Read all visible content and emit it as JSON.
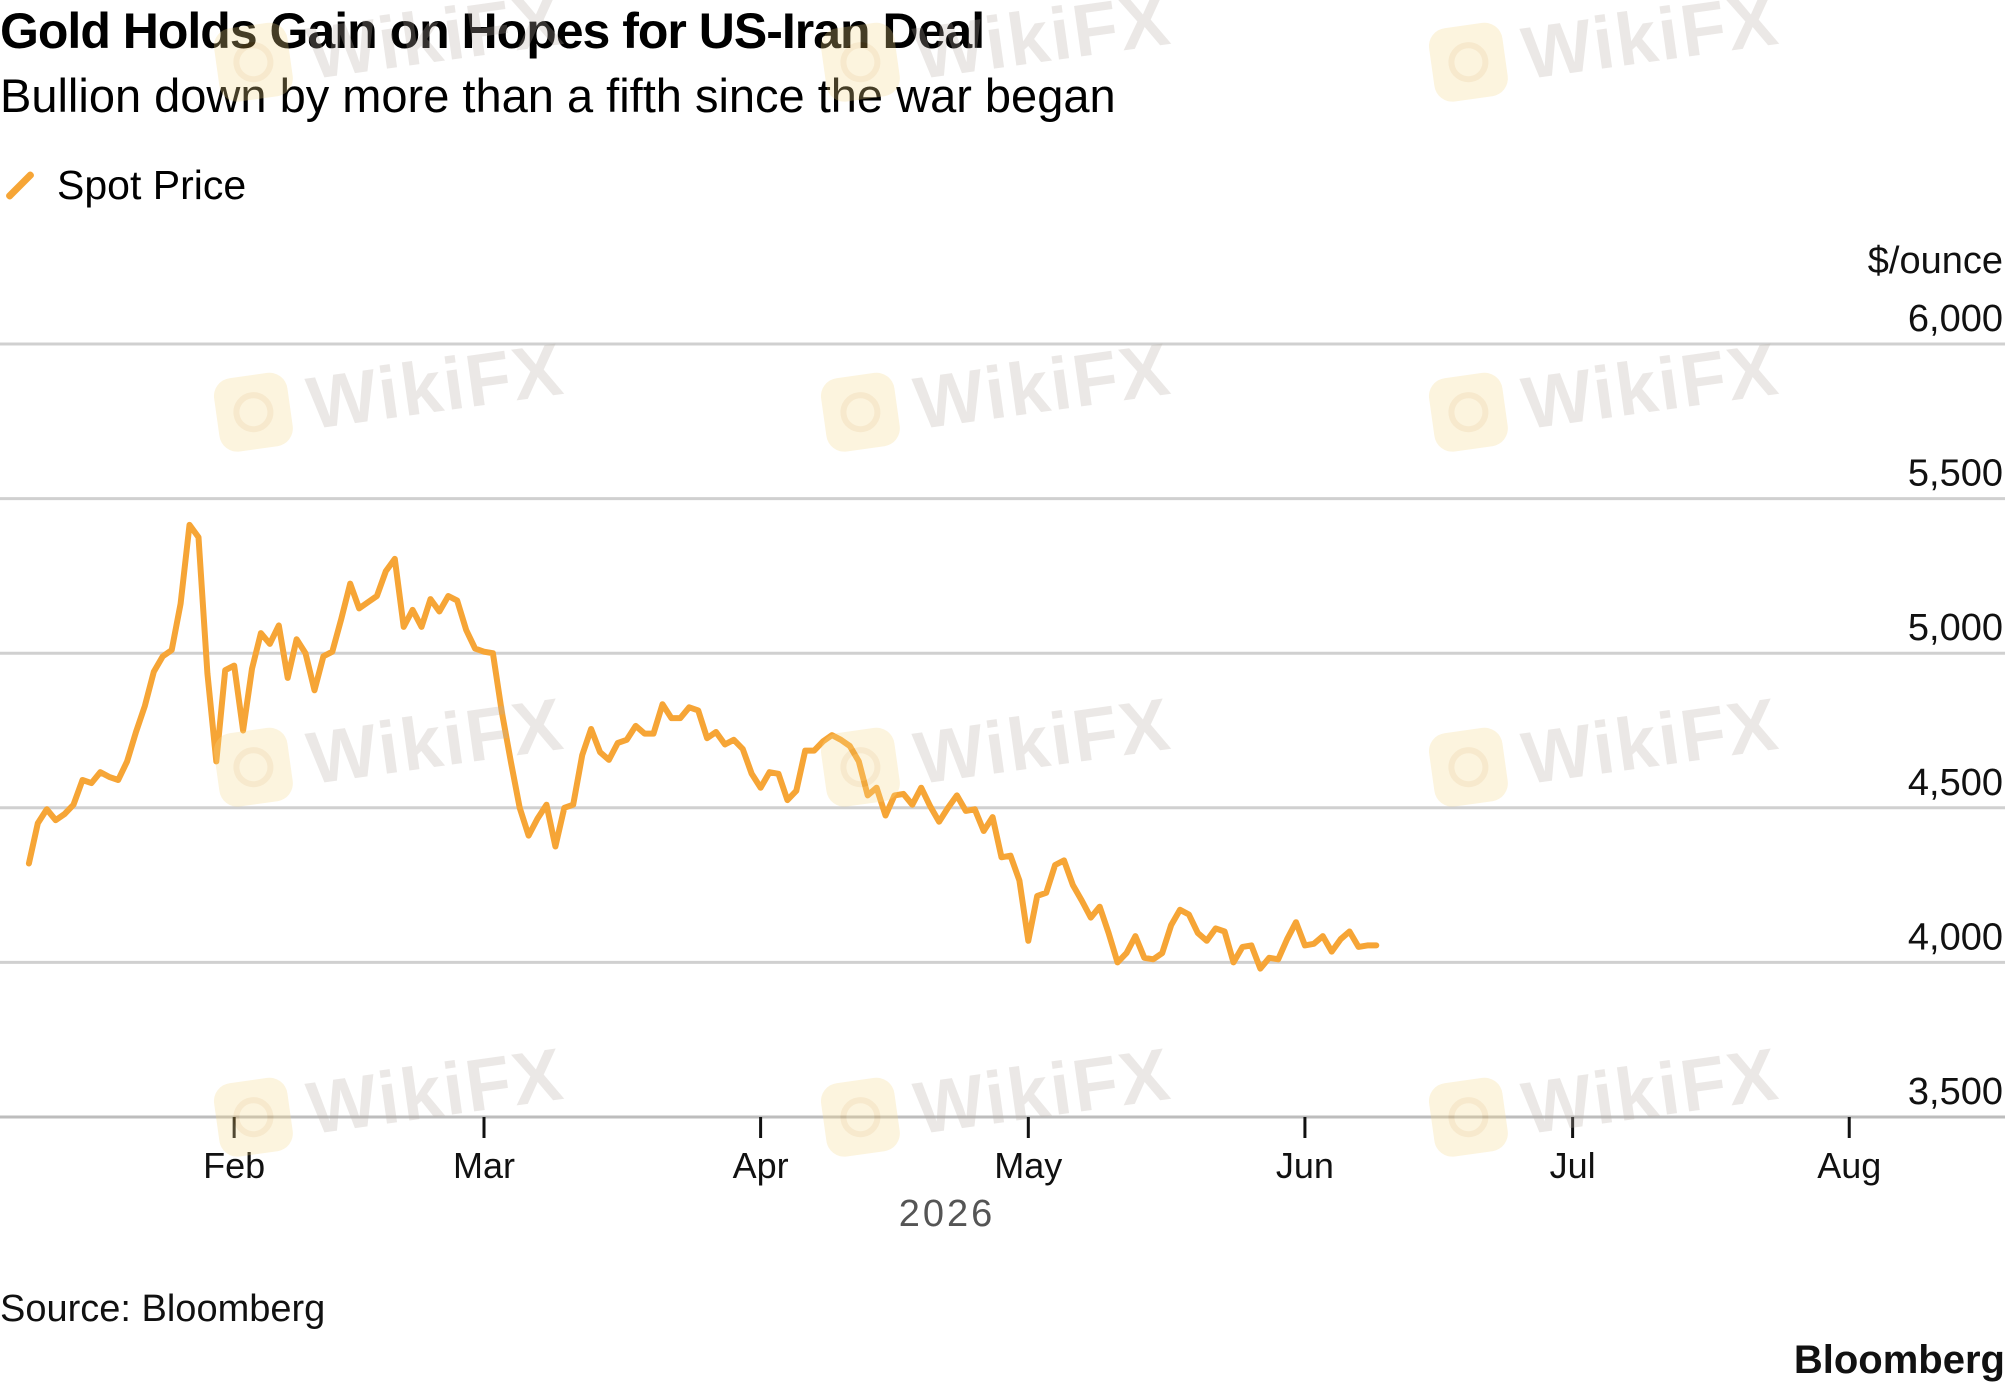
{
  "title": "Gold Holds Gain on Hopes for US-Iran Deal",
  "subtitle": "Bullion down by more than a fifth since the war began",
  "legend": {
    "series_label": "Spot Price",
    "color": "#f6a536"
  },
  "source": "Source: Bloomberg",
  "brand": "Bloomberg",
  "watermark": "WikiFX",
  "chart_data": {
    "type": "line",
    "y_unit_label": "$/ounce",
    "ylim": [
      3500,
      6000
    ],
    "yticks": [
      3500,
      4000,
      4500,
      5000,
      5500,
      6000
    ],
    "ytick_labels": [
      "3,500",
      "4,000",
      "4,500",
      "5,000",
      "5,500",
      "6,000"
    ],
    "xlim": [
      "2026-01-08",
      "2026-08-04"
    ],
    "xticks": [
      "2026-02-01",
      "2026-03-01",
      "2026-04-01",
      "2026-05-01",
      "2026-06-01",
      "2026-07-01",
      "2026-08-01"
    ],
    "xtick_labels": [
      "Feb",
      "Mar",
      "Apr",
      "May",
      "Jun",
      "Jul",
      "Aug"
    ],
    "x_year_label": "2026",
    "grid": true,
    "legend_position": "top-left",
    "series": [
      {
        "name": "Spot Price",
        "color": "#f6a536",
        "points": [
          [
            "2026-01-09",
            4320
          ],
          [
            "2026-01-10",
            4450
          ],
          [
            "2026-01-11",
            4495
          ],
          [
            "2026-01-12",
            4460
          ],
          [
            "2026-01-13",
            4480
          ],
          [
            "2026-01-14",
            4510
          ],
          [
            "2026-01-15",
            4590
          ],
          [
            "2026-01-16",
            4580
          ],
          [
            "2026-01-17",
            4615
          ],
          [
            "2026-01-18",
            4600
          ],
          [
            "2026-01-19",
            4590
          ],
          [
            "2026-01-20",
            4650
          ],
          [
            "2026-01-21",
            4745
          ],
          [
            "2026-01-22",
            4830
          ],
          [
            "2026-01-23",
            4940
          ],
          [
            "2026-01-24",
            4990
          ],
          [
            "2026-01-25",
            5010
          ],
          [
            "2026-01-26",
            5160
          ],
          [
            "2026-01-27",
            5415
          ],
          [
            "2026-01-28",
            5375
          ],
          [
            "2026-01-29",
            4935
          ],
          [
            "2026-01-30",
            4650
          ],
          [
            "2026-01-31",
            4945
          ],
          [
            "2026-02-01",
            4960
          ],
          [
            "2026-02-02",
            4750
          ],
          [
            "2026-02-03",
            4950
          ],
          [
            "2026-02-04",
            5065
          ],
          [
            "2026-02-05",
            5030
          ],
          [
            "2026-02-06",
            5090
          ],
          [
            "2026-02-07",
            4920
          ],
          [
            "2026-02-08",
            5045
          ],
          [
            "2026-02-09",
            5000
          ],
          [
            "2026-02-10",
            4880
          ],
          [
            "2026-02-11",
            4990
          ],
          [
            "2026-02-12",
            5005
          ],
          [
            "2026-02-13",
            5110
          ],
          [
            "2026-02-14",
            5225
          ],
          [
            "2026-02-15",
            5145
          ],
          [
            "2026-02-16",
            5165
          ],
          [
            "2026-02-17",
            5185
          ],
          [
            "2026-02-18",
            5265
          ],
          [
            "2026-02-19",
            5305
          ],
          [
            "2026-02-20",
            5085
          ],
          [
            "2026-02-21",
            5140
          ],
          [
            "2026-02-22",
            5085
          ],
          [
            "2026-02-23",
            5175
          ],
          [
            "2026-02-24",
            5135
          ],
          [
            "2026-02-25",
            5185
          ],
          [
            "2026-02-26",
            5170
          ],
          [
            "2026-02-27",
            5075
          ],
          [
            "2026-02-28",
            5015
          ],
          [
            "2026-03-01",
            5005
          ],
          [
            "2026-03-02",
            5000
          ],
          [
            "2026-03-03",
            4810
          ],
          [
            "2026-03-04",
            4650
          ],
          [
            "2026-03-05",
            4500
          ],
          [
            "2026-03-06",
            4410
          ],
          [
            "2026-03-07",
            4465
          ],
          [
            "2026-03-08",
            4510
          ],
          [
            "2026-03-09",
            4375
          ],
          [
            "2026-03-10",
            4500
          ],
          [
            "2026-03-11",
            4510
          ],
          [
            "2026-03-12",
            4670
          ],
          [
            "2026-03-13",
            4755
          ],
          [
            "2026-03-14",
            4680
          ],
          [
            "2026-03-15",
            4655
          ],
          [
            "2026-03-16",
            4710
          ],
          [
            "2026-03-17",
            4720
          ],
          [
            "2026-03-18",
            4765
          ],
          [
            "2026-03-19",
            4740
          ],
          [
            "2026-03-20",
            4740
          ],
          [
            "2026-03-21",
            4835
          ],
          [
            "2026-03-22",
            4790
          ],
          [
            "2026-03-23",
            4790
          ],
          [
            "2026-03-24",
            4825
          ],
          [
            "2026-03-25",
            4815
          ],
          [
            "2026-03-26",
            4725
          ],
          [
            "2026-03-27",
            4745
          ],
          [
            "2026-03-28",
            4705
          ],
          [
            "2026-03-29",
            4720
          ],
          [
            "2026-03-30",
            4690
          ],
          [
            "2026-03-31",
            4610
          ],
          [
            "2026-04-01",
            4565
          ],
          [
            "2026-04-02",
            4615
          ],
          [
            "2026-04-03",
            4610
          ],
          [
            "2026-04-04",
            4525
          ],
          [
            "2026-04-05",
            4555
          ],
          [
            "2026-04-06",
            4685
          ],
          [
            "2026-04-07",
            4685
          ],
          [
            "2026-04-08",
            4715
          ],
          [
            "2026-04-09",
            4735
          ],
          [
            "2026-04-10",
            4720
          ],
          [
            "2026-04-11",
            4700
          ],
          [
            "2026-04-12",
            4650
          ],
          [
            "2026-04-13",
            4540
          ],
          [
            "2026-04-14",
            4565
          ],
          [
            "2026-04-15",
            4475
          ],
          [
            "2026-04-16",
            4540
          ],
          [
            "2026-04-17",
            4545
          ],
          [
            "2026-04-18",
            4510
          ],
          [
            "2026-04-19",
            4565
          ],
          [
            "2026-04-20",
            4505
          ],
          [
            "2026-04-21",
            4455
          ],
          [
            "2026-04-22",
            4500
          ],
          [
            "2026-04-23",
            4540
          ],
          [
            "2026-04-24",
            4490
          ],
          [
            "2026-04-25",
            4495
          ],
          [
            "2026-04-26",
            4425
          ],
          [
            "2026-04-27",
            4470
          ],
          [
            "2026-04-28",
            4340
          ],
          [
            "2026-04-29",
            4345
          ],
          [
            "2026-04-30",
            4265
          ],
          [
            "2026-05-01",
            4070
          ],
          [
            "2026-05-02",
            4215
          ],
          [
            "2026-05-03",
            4225
          ],
          [
            "2026-05-04",
            4315
          ],
          [
            "2026-05-05",
            4330
          ],
          [
            "2026-05-06",
            4250
          ],
          [
            "2026-05-07",
            4200
          ],
          [
            "2026-05-08",
            4145
          ],
          [
            "2026-05-09",
            4180
          ],
          [
            "2026-05-10",
            4095
          ],
          [
            "2026-05-11",
            4000
          ],
          [
            "2026-05-12",
            4030
          ],
          [
            "2026-05-13",
            4085
          ],
          [
            "2026-05-14",
            4015
          ],
          [
            "2026-05-15",
            4010
          ],
          [
            "2026-05-16",
            4030
          ],
          [
            "2026-05-17",
            4120
          ],
          [
            "2026-05-18",
            4170
          ],
          [
            "2026-05-19",
            4155
          ],
          [
            "2026-05-20",
            4095
          ],
          [
            "2026-05-21",
            4070
          ],
          [
            "2026-05-22",
            4110
          ],
          [
            "2026-05-23",
            4100
          ],
          [
            "2026-05-24",
            4000
          ],
          [
            "2026-05-25",
            4050
          ],
          [
            "2026-05-26",
            4055
          ],
          [
            "2026-05-27",
            3980
          ],
          [
            "2026-05-28",
            4015
          ],
          [
            "2026-05-29",
            4010
          ],
          [
            "2026-05-30",
            4075
          ],
          [
            "2026-05-31",
            4130
          ],
          [
            "2026-06-01",
            4055
          ],
          [
            "2026-06-02",
            4060
          ],
          [
            "2026-06-03",
            4085
          ],
          [
            "2026-06-04",
            4035
          ],
          [
            "2026-06-05",
            4075
          ],
          [
            "2026-06-06",
            4100
          ],
          [
            "2026-06-07",
            4050
          ],
          [
            "2026-06-08",
            4055
          ],
          [
            "2026-06-09",
            4055
          ]
        ]
      }
    ]
  }
}
